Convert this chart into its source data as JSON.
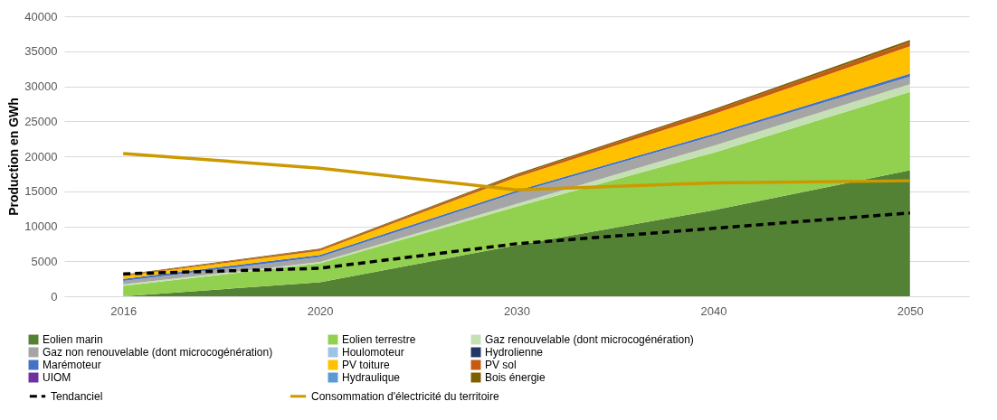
{
  "chart_data": {
    "type": "area",
    "stacked": true,
    "ylabel": "Production en GWh",
    "categories": [
      "2016",
      "2020",
      "2030",
      "2040",
      "2050"
    ],
    "ylim": [
      0,
      40000
    ],
    "yticks": [
      0,
      5000,
      10000,
      15000,
      20000,
      25000,
      30000,
      35000,
      40000
    ],
    "grid": "y",
    "legend": "bottom",
    "series": [
      {
        "name": "Eolien marin",
        "color": "#548235",
        "values": [
          0,
          2000,
          7300,
          12300,
          18000
        ]
      },
      {
        "name": "Eolien terrestre",
        "color": "#92d050",
        "values": [
          1500,
          2700,
          5500,
          8200,
          11200
        ]
      },
      {
        "name": "Gaz renouvelable (dont microcogénération)",
        "color": "#c5e0b4",
        "values": [
          200,
          200,
          400,
          1000,
          1100
        ]
      },
      {
        "name": "Gaz non renouvelable (dont microcogénération)",
        "color": "#a5a5a5",
        "values": [
          500,
          700,
          1600,
          1400,
          1100
        ]
      },
      {
        "name": "Houlomoteur",
        "color": "#9dc3e6",
        "values": [
          null,
          null,
          null,
          null,
          null
        ]
      },
      {
        "name": "Hydrolienne",
        "color": "#203864",
        "values": [
          null,
          null,
          null,
          null,
          null
        ]
      },
      {
        "name": "Marémoteur",
        "color": "#4472c4",
        "values": [
          300,
          300,
          300,
          300,
          400
        ]
      },
      {
        "name": "PV toiture",
        "color": "#ffc000",
        "values": [
          400,
          600,
          1900,
          2800,
          3900
        ]
      },
      {
        "name": "PV sol",
        "color": "#c55a11",
        "values": [
          100,
          200,
          300,
          500,
          600
        ]
      },
      {
        "name": "UIOM",
        "color": "#7030a0",
        "values": [
          null,
          null,
          null,
          null,
          null
        ]
      },
      {
        "name": "Hydraulique",
        "color": "#5b9bd5",
        "values": [
          null,
          null,
          null,
          null,
          null
        ]
      },
      {
        "name": "Bois énergie",
        "color": "#7f6000",
        "values": [
          100,
          100,
          200,
          200,
          300
        ]
      },
      {
        "name": "Tendanciel",
        "type": "line",
        "line_style": "dashed",
        "color": "#000000",
        "values": [
          3200,
          4000,
          7500,
          9700,
          11900
        ]
      },
      {
        "name": "Consommation d'électricité du territoire",
        "type": "line",
        "line_style": "solid",
        "color": "#cc9900",
        "values": [
          20400,
          18300,
          15200,
          16200,
          16500
        ]
      }
    ]
  }
}
